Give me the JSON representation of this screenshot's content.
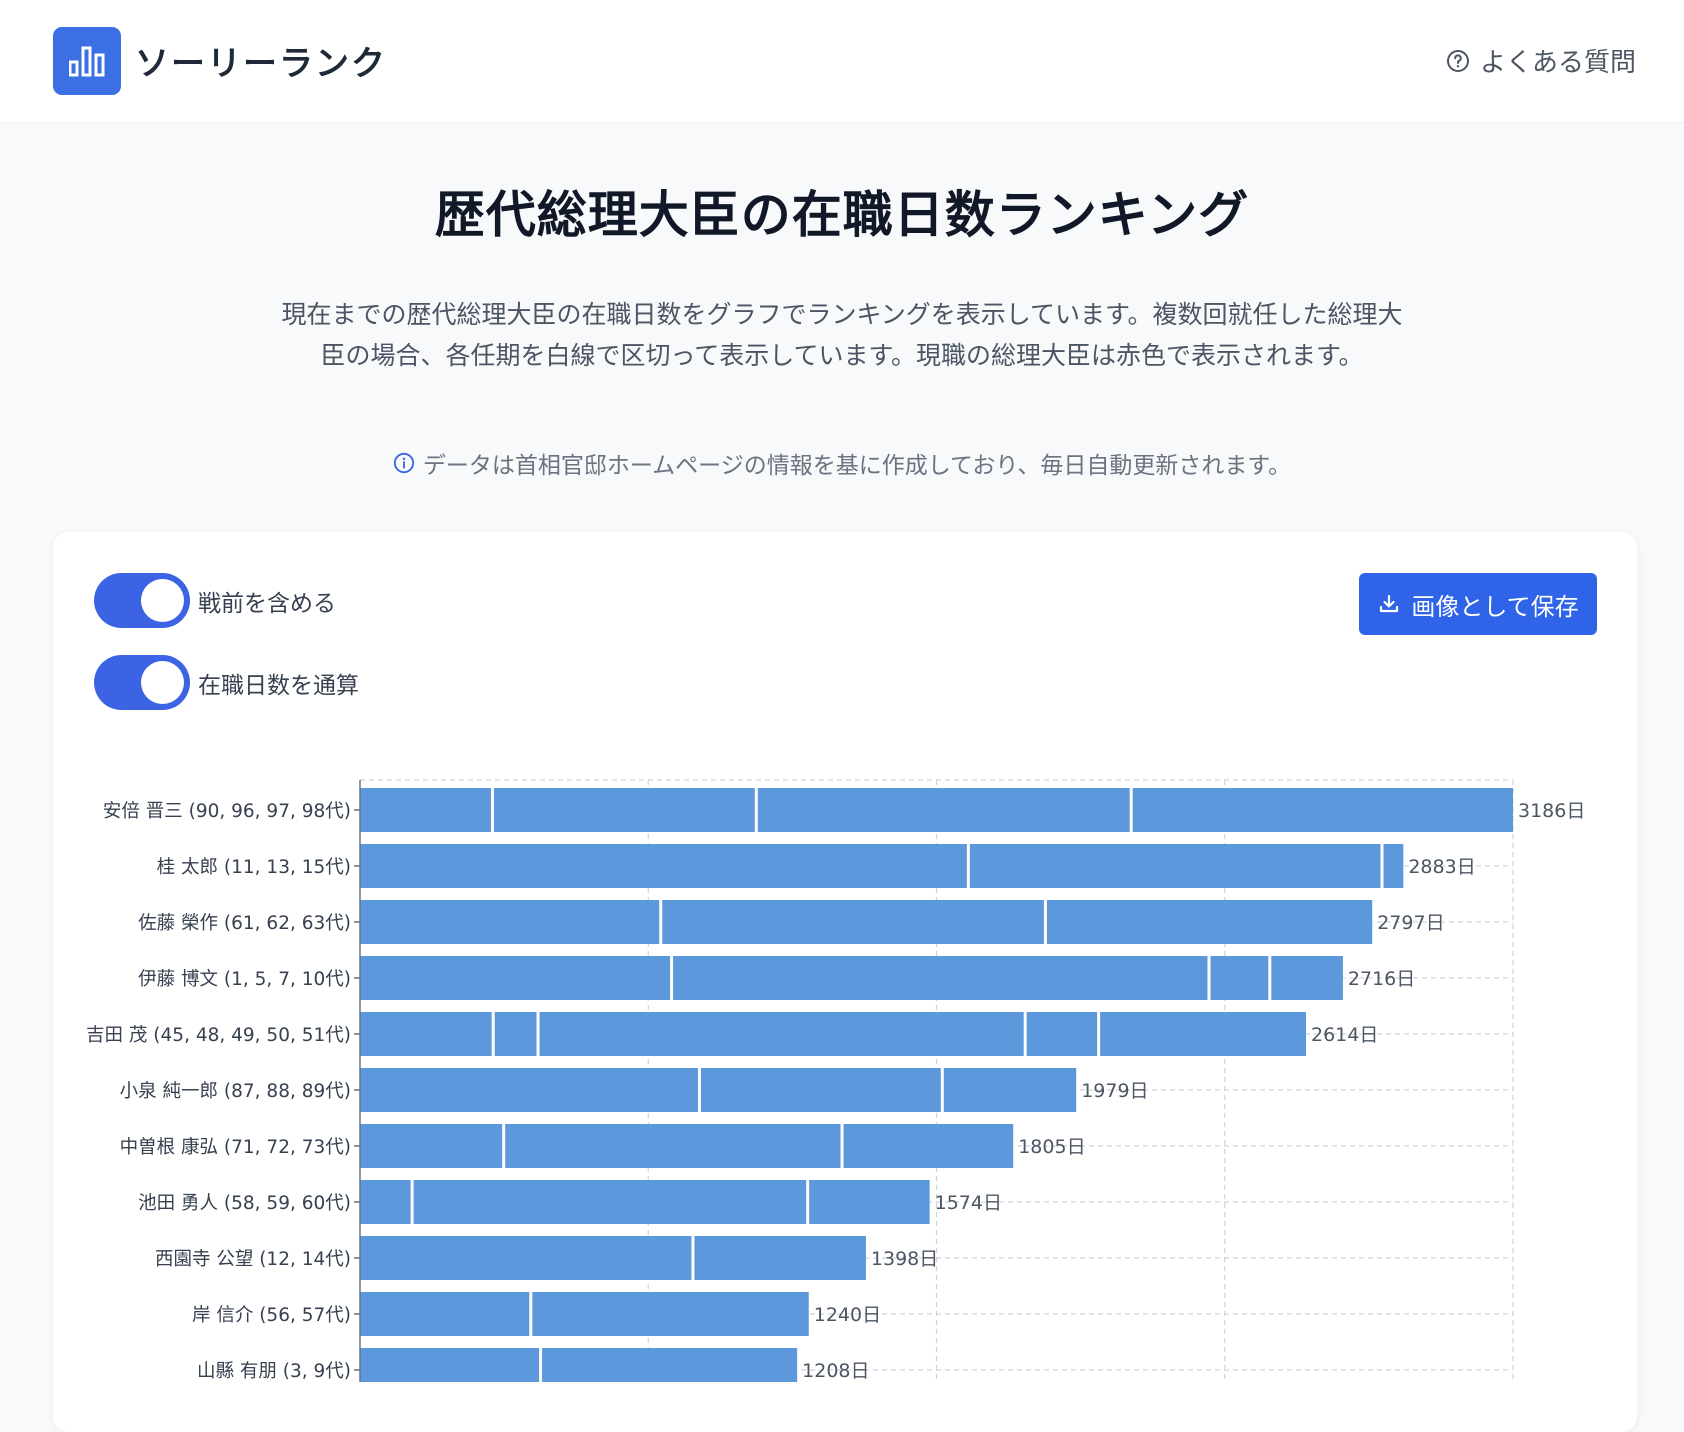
{
  "header": {
    "brand": "ソーリーランク",
    "faq_label": "よくある質問"
  },
  "page": {
    "title": "歴代総理大臣の在職日数ランキング",
    "description": "現在までの歴代総理大臣の在職日数をグラフでランキングを表示しています。複数回就任した総理大臣の場合、各任期を白線で区切って表示しています。現職の総理大臣は赤色で表示されます。",
    "note": "データは首相官邸ホームページの情報を基に作成しており、毎日自動更新されます。"
  },
  "controls": {
    "toggle_prewar_label": "戦前を含める",
    "toggle_prewar_on": true,
    "toggle_total_label": "在職日数を通算",
    "toggle_total_on": true,
    "save_button_label": "画像として保存"
  },
  "colors": {
    "accent": "#3b63e3",
    "bar": "#5b98dc",
    "current_pm": "#e05252"
  },
  "chart_data": {
    "type": "bar",
    "orientation": "horizontal",
    "stacked": true,
    "xlim": [
      0,
      3186
    ],
    "value_suffix": "日",
    "grid": true,
    "categories": [
      "安倍 晋三 (90, 96, 97, 98代)",
      "桂 太郎 (11, 13, 15代)",
      "佐藤 榮作 (61, 62, 63代)",
      "伊藤 博文 (1, 5, 7, 10代)",
      "吉田 茂 (45, 48, 49, 50, 51代)",
      "小泉 純一郎 (87, 88, 89代)",
      "中曽根 康弘 (71, 72, 73代)",
      "池田 勇人 (58, 59, 60代)",
      "西園寺 公望 (12, 14代)",
      "岸 信介 (56, 57代)",
      "山縣 有朋 (3, 9代)"
    ],
    "totals": [
      3186,
      2883,
      2797,
      2716,
      2614,
      1979,
      1805,
      1574,
      1398,
      1240,
      1208
    ],
    "segments": [
      [
        366,
        729,
        1036,
        1055
      ],
      [
        1681,
        1143,
        59
      ],
      [
        831,
        1063,
        903
      ],
      [
        861,
        1485,
        168,
        202
      ],
      [
        368,
        124,
        1346,
        203,
        573
      ],
      [
        938,
        671,
        370
      ],
      [
        397,
        935,
        473
      ],
      [
        144,
        1093,
        337
      ],
      [
        920,
        478
      ],
      [
        472,
        768
      ],
      [
        499,
        709
      ]
    ]
  }
}
